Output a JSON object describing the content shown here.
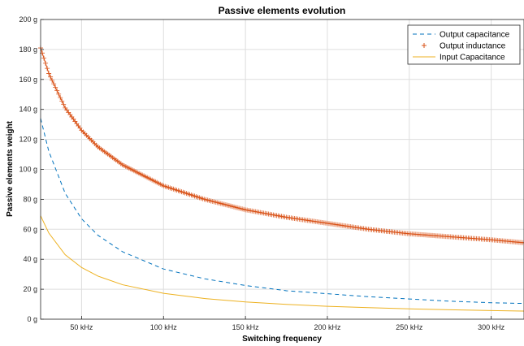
{
  "chart_data": {
    "type": "line",
    "title": "Passive elements evolution",
    "xlabel": "Switching frequency",
    "ylabel": "Passive elements weight",
    "xlim": [
      25,
      320
    ],
    "ylim": [
      0,
      200
    ],
    "x_unit": "kHz",
    "y_unit": "g",
    "x_ticks": [
      50,
      100,
      150,
      200,
      250,
      300
    ],
    "x_tick_labels": [
      "50 kHz",
      "100 kHz",
      "150 kHz",
      "200 kHz",
      "250 kHz",
      "300 kHz"
    ],
    "y_ticks": [
      0,
      20,
      40,
      60,
      80,
      100,
      120,
      140,
      160,
      180,
      200
    ],
    "y_tick_labels": [
      "0 g",
      "20 g",
      "40 g",
      "60 g",
      "80 g",
      "100 g",
      "120 g",
      "140 g",
      "160 g",
      "180 g",
      "200 g"
    ],
    "grid": true,
    "legend_position": "top-right",
    "series": [
      {
        "name": "Output capacitance",
        "style": "dashed",
        "color": "#0072BD",
        "x": [
          25,
          30,
          40,
          50,
          60,
          75,
          100,
          125,
          150,
          175,
          200,
          225,
          250,
          275,
          300,
          320
        ],
        "y": [
          134,
          112,
          84,
          67,
          56,
          45,
          33.5,
          27,
          22.5,
          19,
          17,
          15,
          13.5,
          12,
          11,
          10.5
        ]
      },
      {
        "name": "Output inductance",
        "style": "markers-plus",
        "color": "#D95319",
        "x": [
          25,
          30,
          40,
          50,
          60,
          75,
          100,
          125,
          150,
          175,
          200,
          225,
          250,
          275,
          300,
          320
        ],
        "y": [
          181,
          164,
          141,
          126,
          115,
          103,
          89,
          80,
          73,
          68,
          64,
          60,
          57,
          55,
          53,
          51
        ]
      },
      {
        "name": "Input Capacitance",
        "style": "solid",
        "color": "#EDB120",
        "x": [
          25,
          30,
          40,
          50,
          60,
          75,
          100,
          125,
          150,
          175,
          200,
          225,
          250,
          275,
          300,
          320
        ],
        "y": [
          69,
          57.5,
          43,
          34.5,
          28.75,
          23,
          17.25,
          13.8,
          11.5,
          9.9,
          8.6,
          7.7,
          6.9,
          6.3,
          5.75,
          5.4
        ]
      }
    ]
  }
}
